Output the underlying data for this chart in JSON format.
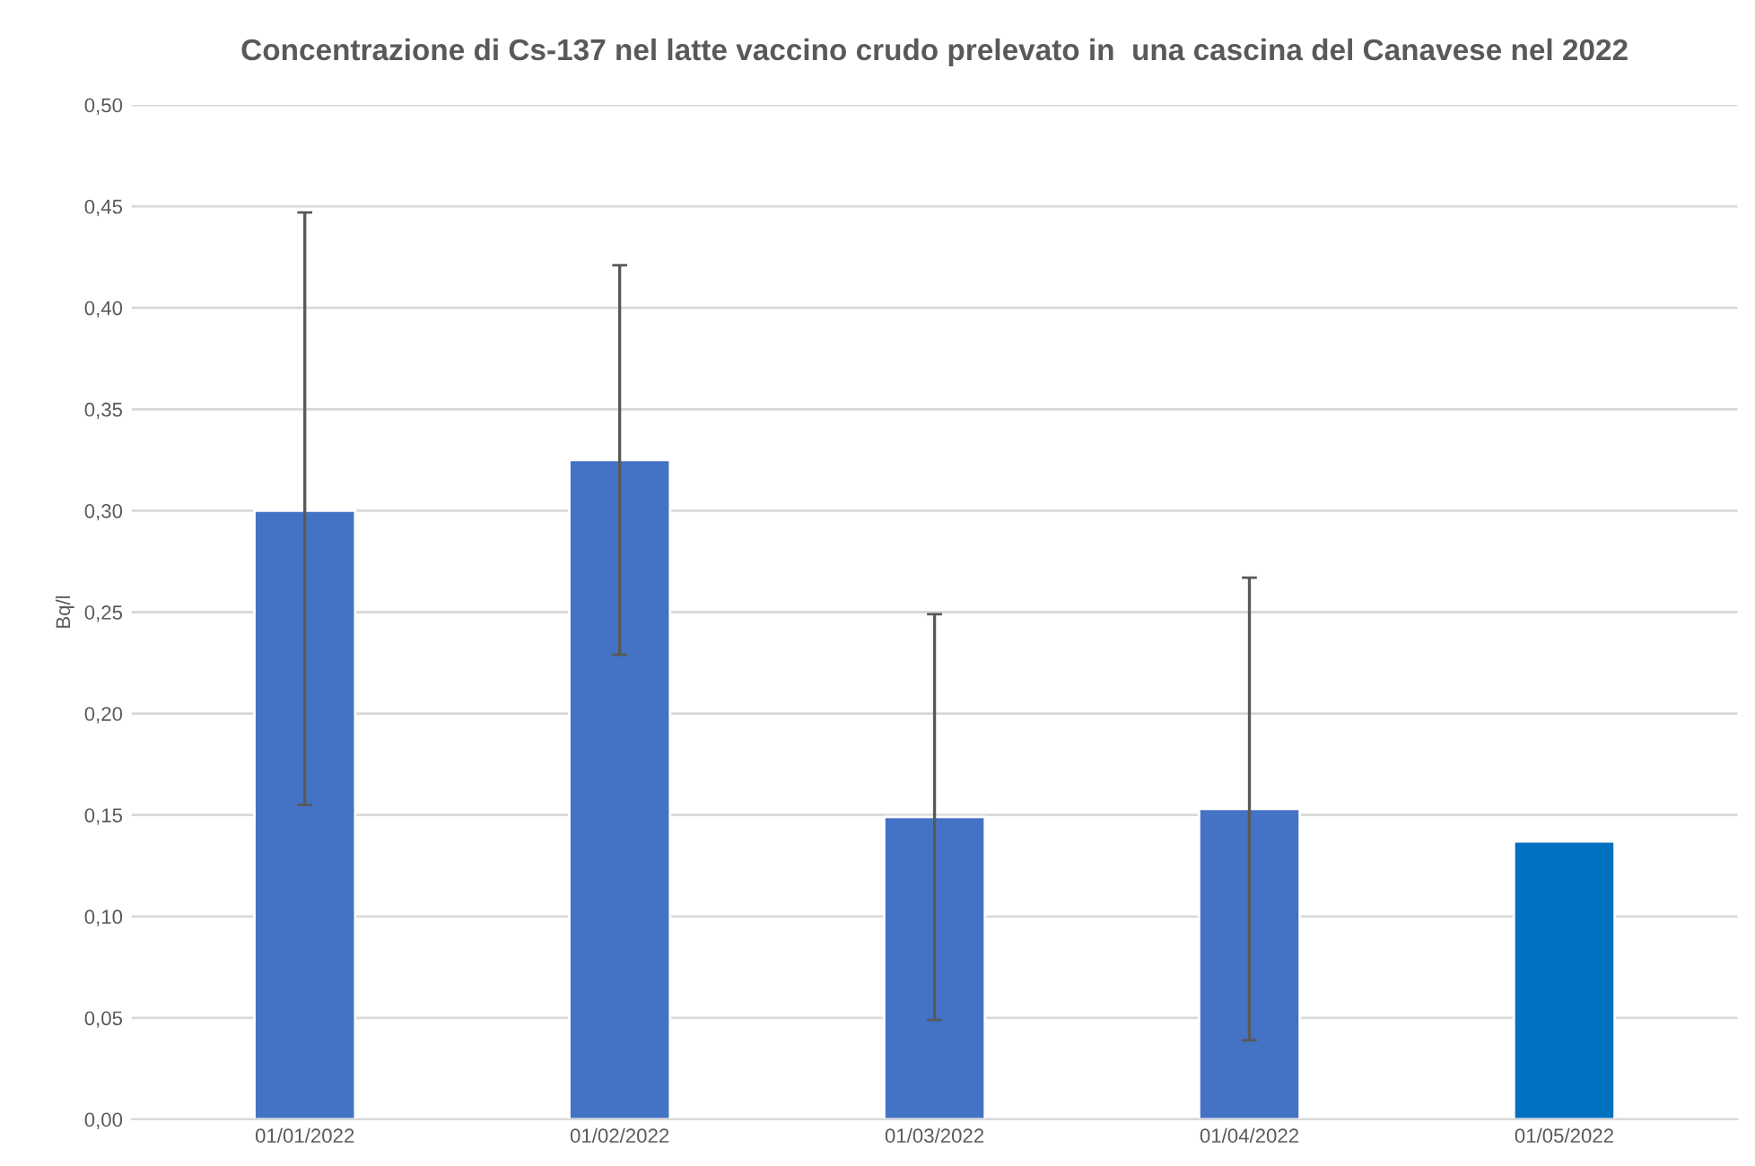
{
  "chart_data": {
    "type": "bar",
    "title": "Concentrazione di Cs-137 nel latte vaccino crudo prelevato in  una cascina del Canavese nel 2022",
    "ylabel": "Bq/l",
    "categories": [
      "01/01/2022",
      "01/02/2022",
      "01/03/2022",
      "01/04/2022",
      "01/05/2022"
    ],
    "values": [
      0.3,
      0.325,
      0.149,
      0.153,
      0.137
    ],
    "colors": [
      "#4472c4",
      "#4472c4",
      "#4472c4",
      "#4472c4",
      "#0070c0"
    ],
    "errors": [
      [
        0.155,
        0.447
      ],
      [
        0.229,
        0.421
      ],
      [
        0.049,
        0.249
      ],
      [
        0.039,
        0.267
      ],
      null
    ],
    "ylim": [
      0,
      0.5
    ],
    "yticks": [
      {
        "value": 0,
        "label": "0,00"
      },
      {
        "value": 0.05,
        "label": "0,05"
      },
      {
        "value": 0.1,
        "label": "0,10"
      },
      {
        "value": 0.15,
        "label": "0,15"
      },
      {
        "value": 0.2,
        "label": "0,20"
      },
      {
        "value": 0.25,
        "label": "0,25"
      },
      {
        "value": 0.3,
        "label": "0,30"
      },
      {
        "value": 0.35,
        "label": "0,35"
      },
      {
        "value": 0.4,
        "label": "0,40"
      },
      {
        "value": 0.45,
        "label": "0,45"
      },
      {
        "value": 0.5,
        "label": "0,50"
      }
    ],
    "grid": "y"
  }
}
